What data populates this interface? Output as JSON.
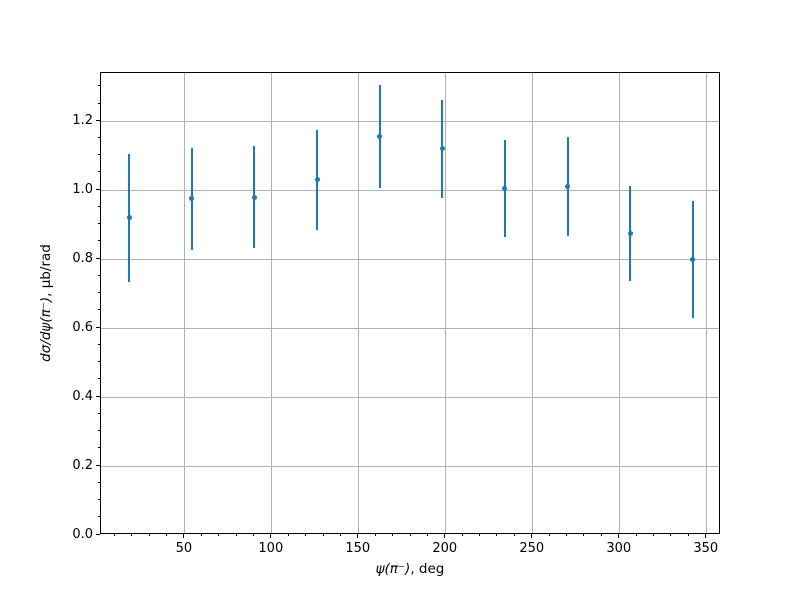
{
  "chart_data": {
    "type": "scatter",
    "title": "",
    "x": [
      18,
      54,
      90,
      126,
      162,
      198,
      234,
      270,
      306,
      342
    ],
    "y": [
      0.92,
      0.975,
      0.98,
      1.03,
      1.155,
      1.12,
      1.005,
      1.01,
      0.875,
      0.8
    ],
    "yerr": [
      0.185,
      0.147,
      0.147,
      0.145,
      0.149,
      0.143,
      0.14,
      0.144,
      0.138,
      0.17
    ],
    "xlabel": {
      "math": "ψ(π⁻)",
      "suffix": ", deg"
    },
    "ylabel": {
      "math": "dσ/dψ(π⁻)",
      "suffix": ", μb/rad"
    },
    "xlim": [
      1.8,
      358.2
    ],
    "ylim": [
      0.0,
      1.34
    ],
    "x_major_ticks": [
      50,
      100,
      150,
      200,
      250,
      300,
      350
    ],
    "x_tick_labels": [
      "50",
      "100",
      "150",
      "200",
      "250",
      "300",
      "350"
    ],
    "y_major_ticks": [
      0.0,
      0.2,
      0.4,
      0.6,
      0.8,
      1.0,
      1.2
    ],
    "y_tick_labels": [
      "0.0",
      "0.2",
      "0.4",
      "0.6",
      "0.8",
      "1.0",
      "1.2"
    ],
    "x_minor_step": 10,
    "y_minor_step": 0.05,
    "grid": true,
    "legend_position": "none",
    "error_caps": false,
    "marker_color": "#1f77b4",
    "grid_color": "#b0b0b0",
    "spine_color": "#000000"
  }
}
